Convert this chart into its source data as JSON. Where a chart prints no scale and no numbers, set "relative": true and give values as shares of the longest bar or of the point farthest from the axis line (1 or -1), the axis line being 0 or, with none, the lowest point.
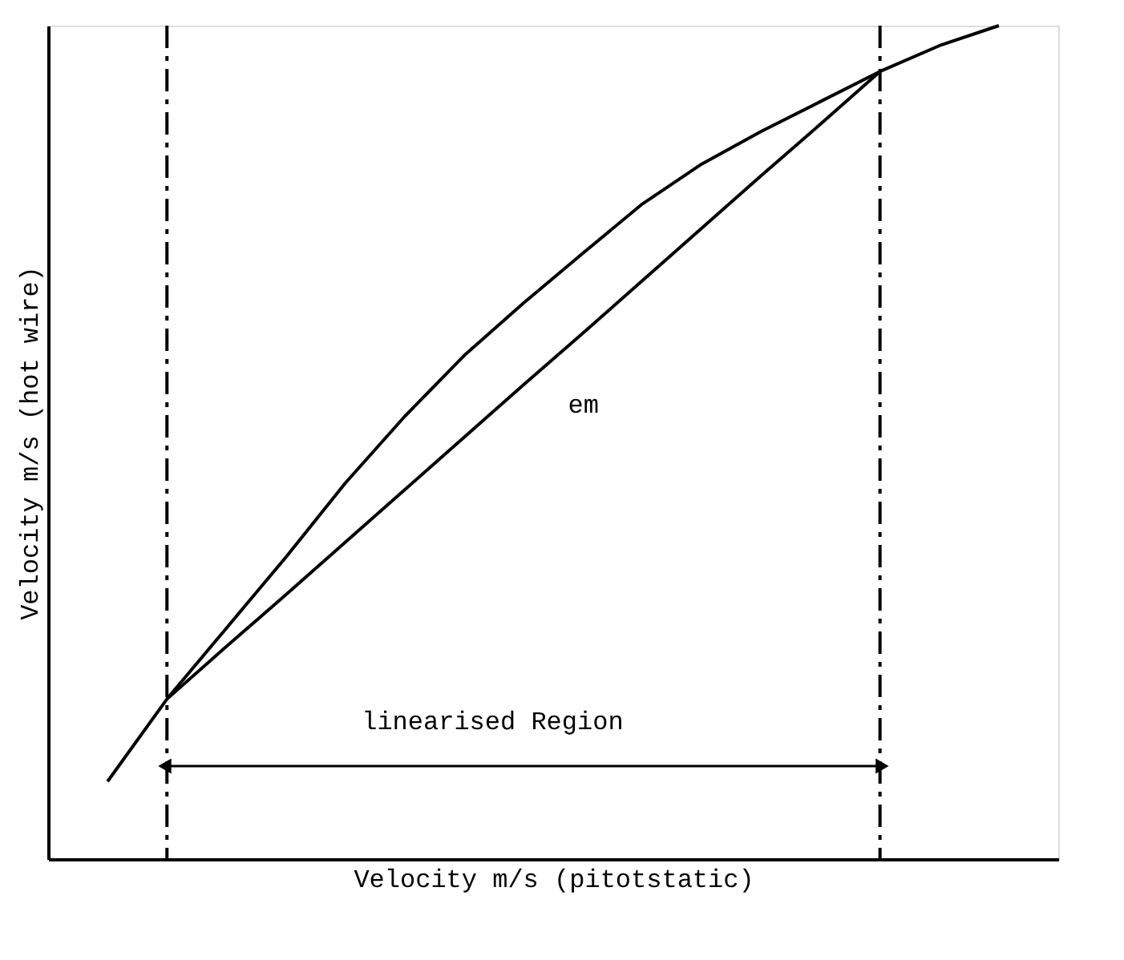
{
  "chart_data": {
    "type": "line",
    "relative": true,
    "xlabel": "Velocity m/s (pitotstatic)",
    "ylabel": "Velocity m/s (hot wire)",
    "tick_labels": false,
    "grid": false,
    "marker": "none",
    "line_style": "solid",
    "categories": [
      null,
      null,
      null,
      null,
      null,
      null,
      null,
      null,
      null,
      null,
      null,
      null,
      null,
      null,
      null,
      null
    ],
    "series": [
      {
        "color": "#000000",
        "values": [
          0.093,
          0.192,
          0.277,
          0.362,
          0.451,
          0.531,
          0.604,
          0.667,
          0.727,
          0.786,
          0.834,
          0.873,
          0.909,
          0.945,
          0.976,
          1
        ]
      },
      {
        "color": "#000000",
        "values": [
          null,
          0.192,
          0.255,
          0.317,
          0.38,
          0.443,
          0.506,
          0.569,
          0.631,
          0.694,
          0.757,
          0.82,
          0.882,
          0.945,
          null,
          null
        ]
      }
    ],
    "annotations": [
      "em",
      "linearised Region"
    ]
  }
}
